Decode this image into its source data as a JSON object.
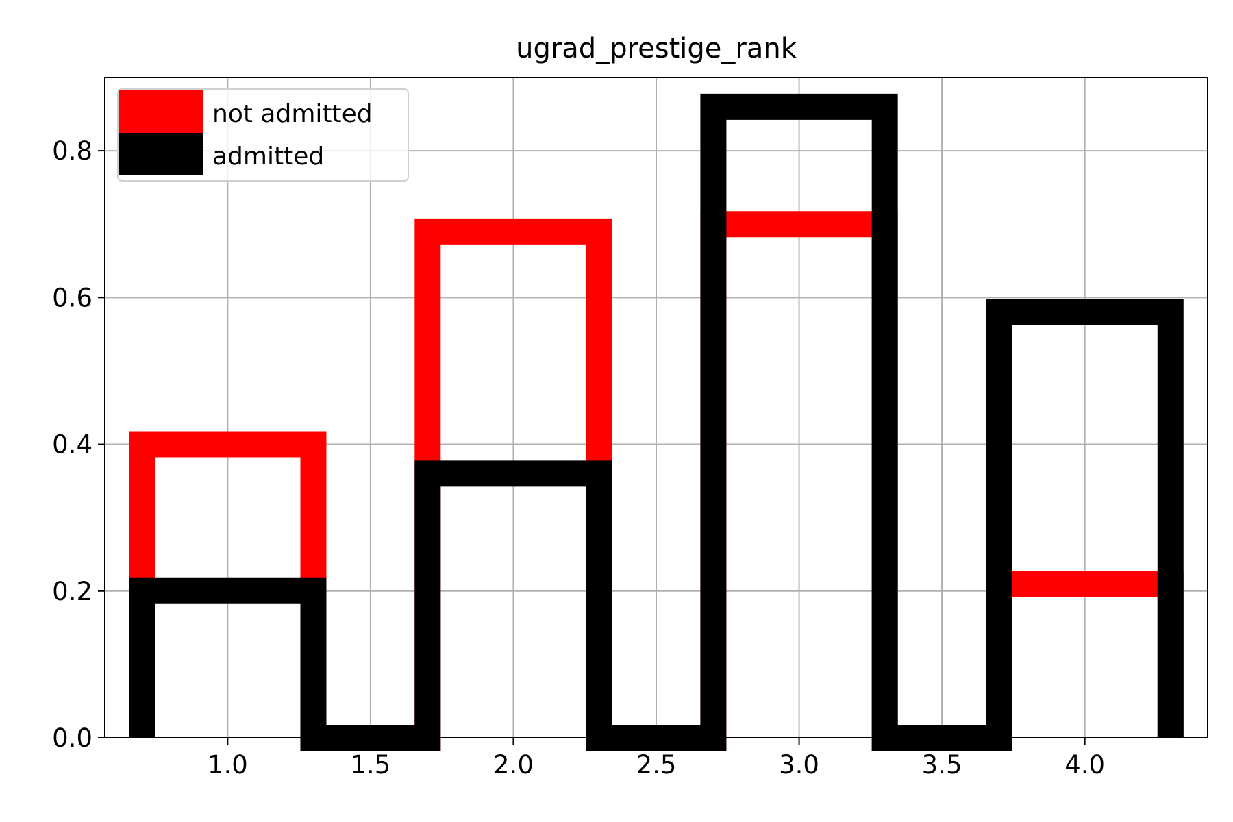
{
  "chart_data": {
    "type": "bar",
    "title": "ugrad_prestige_rank",
    "xlabel": "",
    "ylabel": "",
    "xlim": [
      0.57,
      4.43
    ],
    "ylim": [
      0,
      0.9
    ],
    "xticks": [
      "1.0",
      "1.5",
      "2.0",
      "2.5",
      "3.0",
      "3.5",
      "4.0"
    ],
    "yticks": [
      "0.0",
      "0.2",
      "0.4",
      "0.6",
      "0.8"
    ],
    "grid": true,
    "legend_placement": "top-left",
    "histtype": "step",
    "bin_edges": [
      0.7,
      1.3,
      1.7,
      2.3,
      2.7,
      3.3,
      3.7,
      4.3
    ],
    "series": [
      {
        "name": "not admitted",
        "color": "#ff0000",
        "values": [
          0.4,
          0,
          0.69,
          0,
          0.7,
          0,
          0.21
        ]
      },
      {
        "name": "admitted",
        "color": "#000000",
        "values": [
          0.2,
          0,
          0.36,
          0,
          0.86,
          0,
          0.58
        ]
      }
    ]
  }
}
